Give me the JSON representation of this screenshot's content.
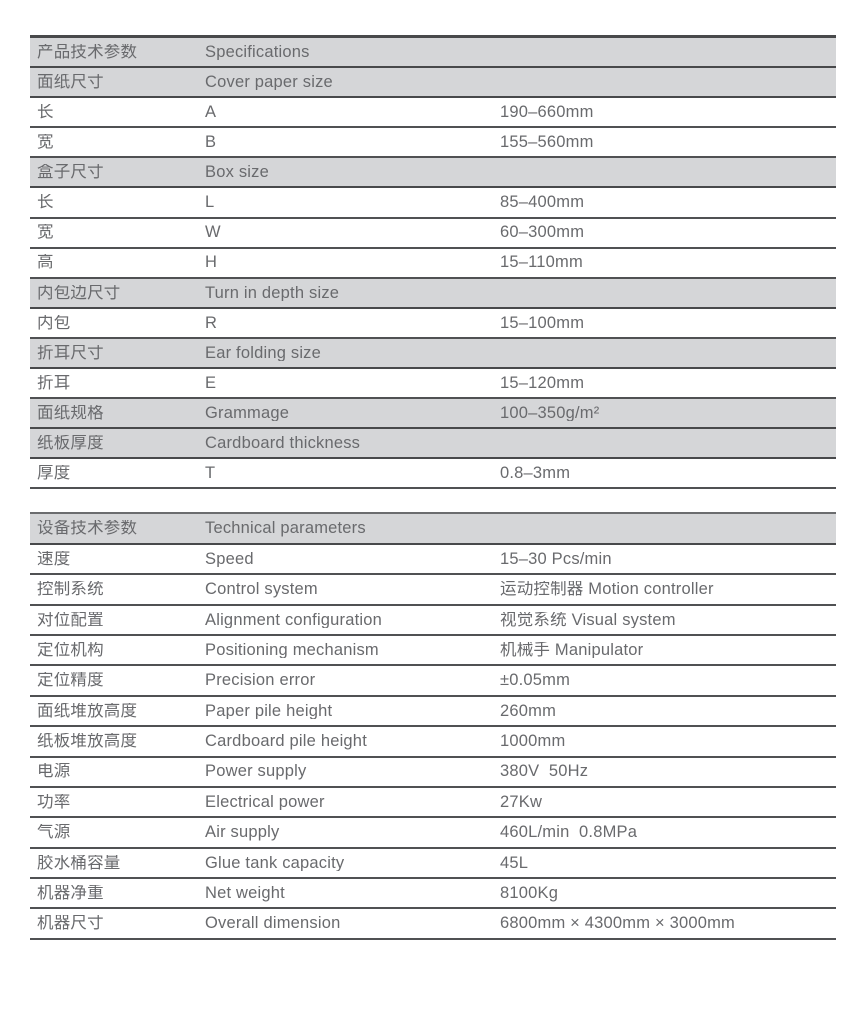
{
  "colors": {
    "header_row_bg": "#d5d6d8",
    "border_dark": "#48494b",
    "row_border": "#505153",
    "text": "#696a6d",
    "page_bg": "#ffffff"
  },
  "tables": [
    {
      "id": "specifications",
      "title_cn": "产品技术参数",
      "title_en": "Specifications",
      "columns": [
        "chinese-label",
        "english-label",
        "value"
      ],
      "rows": [
        {
          "type": "header",
          "cn": "产品技术参数",
          "en": "Specifications",
          "value": ""
        },
        {
          "type": "header",
          "cn": "面纸尺寸",
          "en": "Cover paper size",
          "value": ""
        },
        {
          "type": "data",
          "cn": "长",
          "en": "A",
          "value": "190–660mm"
        },
        {
          "type": "data",
          "cn": "宽",
          "en": "B",
          "value": "155–560mm"
        },
        {
          "type": "header",
          "cn": "盒子尺寸",
          "en": "Box size",
          "value": ""
        },
        {
          "type": "data",
          "cn": "长",
          "en": "L",
          "value": "85–400mm"
        },
        {
          "type": "data",
          "cn": "宽",
          "en": "W",
          "value": "60–300mm"
        },
        {
          "type": "data",
          "cn": "高",
          "en": "H",
          "value": "15–110mm"
        },
        {
          "type": "header",
          "cn": "内包边尺寸",
          "en": "Turn in depth size",
          "value": ""
        },
        {
          "type": "data",
          "cn": "内包",
          "en": "R",
          "value": "15–100mm"
        },
        {
          "type": "header",
          "cn": "折耳尺寸",
          "en": "Ear folding size",
          "value": ""
        },
        {
          "type": "data",
          "cn": "折耳",
          "en": "E",
          "value": "15–120mm"
        },
        {
          "type": "header",
          "cn": "面纸规格",
          "en": "Grammage",
          "value": "100–350g/m²"
        },
        {
          "type": "header",
          "cn": "纸板厚度",
          "en": "Cardboard thickness",
          "value": ""
        },
        {
          "type": "data",
          "cn": "厚度",
          "en": "T",
          "value": "0.8–3mm"
        }
      ]
    },
    {
      "id": "technical-parameters",
      "title_cn": "设备技术参数",
      "title_en": "Technical parameters",
      "columns": [
        "chinese-label",
        "english-label",
        "value"
      ],
      "rows": [
        {
          "type": "header",
          "cn": "设备技术参数",
          "en": "Technical parameters",
          "value": ""
        },
        {
          "type": "data",
          "cn": "速度",
          "en": "Speed",
          "value": "15–30 Pcs/min"
        },
        {
          "type": "data",
          "cn": "控制系统",
          "en": "Control system",
          "value": "运动控制器 Motion controller"
        },
        {
          "type": "data",
          "cn": "对位配置",
          "en": "Alignment configuration",
          "value": "视觉系统 Visual system"
        },
        {
          "type": "data",
          "cn": "定位机构",
          "en": "Positioning mechanism",
          "value": "机械手 Manipulator"
        },
        {
          "type": "data",
          "cn": "定位精度",
          "en": "Precision error",
          "value": "±0.05mm"
        },
        {
          "type": "data",
          "cn": "面纸堆放高度",
          "en": "Paper pile height",
          "value": "260mm"
        },
        {
          "type": "data",
          "cn": "纸板堆放高度",
          "en": "Cardboard pile height",
          "value": "1000mm"
        },
        {
          "type": "data",
          "cn": "电源",
          "en": "Power supply",
          "value": "380V  50Hz"
        },
        {
          "type": "data",
          "cn": "功率",
          "en": "Electrical power",
          "value": "27Kw"
        },
        {
          "type": "data",
          "cn": "气源",
          "en": "Air supply",
          "value": "460L/min  0.8MPa"
        },
        {
          "type": "data",
          "cn": "胶水桶容量",
          "en": "Glue tank capacity",
          "value": "45L"
        },
        {
          "type": "data",
          "cn": "机器净重",
          "en": "Net weight",
          "value": "8100Kg"
        },
        {
          "type": "data",
          "cn": "机器尺寸",
          "en": "Overall dimension",
          "value": "6800mm × 4300mm × 3000mm"
        }
      ]
    }
  ]
}
